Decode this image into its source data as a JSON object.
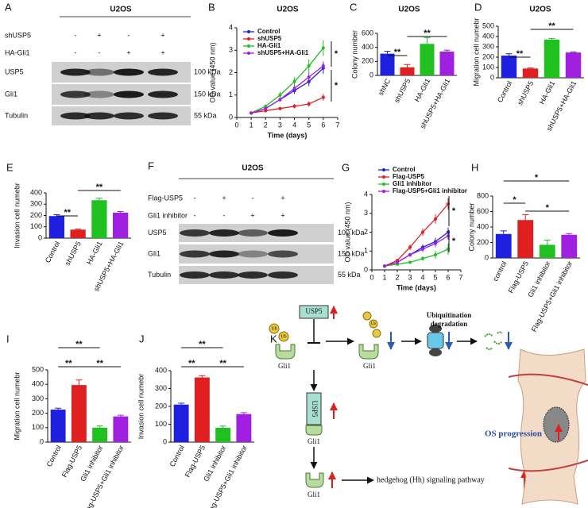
{
  "chart_data": [
    {
      "type": "line",
      "panel": "B",
      "title": "U2OS",
      "xlabel": "Time (days)",
      "ylabel": "OD value (450 nm)",
      "x": [
        1,
        2,
        3,
        4,
        5,
        6
      ],
      "xlim": [
        0,
        7
      ],
      "xticks": [
        0,
        1,
        2,
        3,
        4,
        5,
        6,
        7
      ],
      "ylim": [
        0,
        4
      ],
      "yticks": [
        0,
        1,
        2,
        3,
        4
      ],
      "series": [
        {
          "name": "Control",
          "color": "#1f1fe0",
          "values": [
            0.2,
            0.4,
            0.8,
            1.2,
            1.6,
            2.2
          ],
          "errors": [
            0.03,
            0.06,
            0.1,
            0.15,
            0.2,
            0.25
          ]
        },
        {
          "name": "shUSP5",
          "color": "#e02020",
          "values": [
            0.2,
            0.3,
            0.4,
            0.5,
            0.6,
            0.9
          ],
          "errors": [
            0.03,
            0.05,
            0.08,
            0.1,
            0.12,
            0.15
          ]
        },
        {
          "name": "HA-Gli1",
          "color": "#20c020",
          "values": [
            0.2,
            0.5,
            1.0,
            1.6,
            2.3,
            3.1
          ],
          "errors": [
            0.03,
            0.08,
            0.15,
            0.2,
            0.3,
            0.35
          ]
        },
        {
          "name": "shUSP5+HA-Gli1",
          "color": "#a020e0",
          "values": [
            0.2,
            0.4,
            0.8,
            1.3,
            1.8,
            2.3
          ],
          "errors": [
            0.03,
            0.06,
            0.1,
            0.15,
            0.2,
            0.2
          ]
        }
      ],
      "annotations": [
        "*",
        "*"
      ]
    },
    {
      "type": "bar",
      "panel": "C",
      "title": "U2OS",
      "ylabel": "Colony number",
      "categories": [
        "shNC",
        "shUSP5",
        "HA-Gli1",
        "shUSP5+HA-Gli1"
      ],
      "values": [
        310,
        115,
        450,
        340
      ],
      "errors": [
        35,
        40,
        90,
        20
      ],
      "colors": [
        "#1f1fe0",
        "#e02020",
        "#20c020",
        "#a020e0"
      ],
      "ylim": [
        0,
        600
      ],
      "yticks": [
        0,
        200,
        400,
        600
      ],
      "annotations": [
        "**",
        "**"
      ]
    },
    {
      "type": "bar",
      "panel": "D",
      "title": "U2OS",
      "ylabel": "Migration cell numebr",
      "categories": [
        "Control",
        "shUSP5",
        "HA-Gli1",
        "shUSP5+HA-Gli1"
      ],
      "values": [
        215,
        90,
        370,
        245
      ],
      "errors": [
        18,
        5,
        12,
        5
      ],
      "colors": [
        "#1f1fe0",
        "#e02020",
        "#20c020",
        "#a020e0"
      ],
      "ylim": [
        0,
        500
      ],
      "yticks": [
        0,
        100,
        200,
        300,
        400,
        500
      ],
      "annotations": [
        "**",
        "**"
      ]
    },
    {
      "type": "bar",
      "panel": "E",
      "ylabel": "Invasion cell numebr",
      "categories": [
        "Control",
        "shUSP5",
        "HA-Gli1",
        "shUSP5+HA-Gli1"
      ],
      "values": [
        195,
        75,
        335,
        225
      ],
      "errors": [
        12,
        5,
        18,
        10
      ],
      "colors": [
        "#1f1fe0",
        "#e02020",
        "#20c020",
        "#a020e0"
      ],
      "ylim": [
        0,
        400
      ],
      "yticks": [
        0,
        100,
        200,
        300,
        400
      ],
      "annotations": [
        "**",
        "**"
      ]
    },
    {
      "type": "line",
      "panel": "G",
      "xlabel": "Time (days)",
      "ylabel": "OD value (450 nm)",
      "x": [
        1,
        2,
        3,
        4,
        5,
        6
      ],
      "xlim": [
        0,
        7
      ],
      "xticks": [
        0,
        1,
        2,
        3,
        4,
        5,
        6,
        7
      ],
      "ylim": [
        0,
        4
      ],
      "yticks": [
        0,
        1,
        2,
        3,
        4
      ],
      "series": [
        {
          "name": "Control",
          "color": "#1f1fe0",
          "values": [
            0.2,
            0.4,
            0.8,
            1.2,
            1.5,
            2.0
          ],
          "errors": [
            0.03,
            0.06,
            0.1,
            0.15,
            0.2,
            0.25
          ]
        },
        {
          "name": "Flag-USP5",
          "color": "#e02020",
          "values": [
            0.2,
            0.5,
            1.2,
            2.0,
            2.7,
            3.5
          ],
          "errors": [
            0.03,
            0.08,
            0.15,
            0.2,
            0.25,
            0.3
          ]
        },
        {
          "name": "Gli1 inhibitor",
          "color": "#20c020",
          "values": [
            0.2,
            0.3,
            0.4,
            0.6,
            0.8,
            1.1
          ],
          "errors": [
            0.03,
            0.05,
            0.08,
            0.12,
            0.2,
            0.3
          ]
        },
        {
          "name": "Flag-USP5+Gli1 inhibitor",
          "color": "#a020e0",
          "values": [
            0.2,
            0.4,
            0.8,
            1.1,
            1.4,
            1.8
          ],
          "errors": [
            0.03,
            0.06,
            0.1,
            0.15,
            0.2,
            0.2
          ]
        }
      ],
      "annotations": [
        "*",
        "*"
      ]
    },
    {
      "type": "bar",
      "panel": "H",
      "ylabel": "Colony number",
      "categories": [
        "control",
        "Flag-USP5",
        "Gli1 inhibitor",
        "Flag-USP5+Gli1 inhibitor"
      ],
      "values": [
        310,
        490,
        170,
        300
      ],
      "errors": [
        40,
        70,
        60,
        15
      ],
      "colors": [
        "#1f1fe0",
        "#e02020",
        "#20c020",
        "#a020e0"
      ],
      "ylim": [
        0,
        800
      ],
      "yticks": [
        0,
        200,
        400,
        600,
        800
      ],
      "annotations": [
        "*",
        "*",
        "*"
      ]
    },
    {
      "type": "bar",
      "panel": "I",
      "ylabel": "Migration cell numebr",
      "categories": [
        "Control",
        "Flag-USP5",
        "Gli1 inhibitor",
        "Flag-USP5+Gli1 inhibitor"
      ],
      "values": [
        225,
        395,
        100,
        178
      ],
      "errors": [
        10,
        35,
        12,
        8
      ],
      "colors": [
        "#1f1fe0",
        "#e02020",
        "#20c020",
        "#a020e0"
      ],
      "ylim": [
        0,
        500
      ],
      "yticks": [
        0,
        100,
        200,
        300,
        400,
        500
      ],
      "annotations": [
        "**",
        "**",
        "**"
      ]
    },
    {
      "type": "bar",
      "panel": "J",
      "ylabel": "Invasion cell numebr",
      "categories": [
        "Control",
        "Flag-USP5",
        "Gli1 inhibitor",
        "Flag-USP5+Gli1 inhibitor"
      ],
      "values": [
        210,
        362,
        80,
        157
      ],
      "errors": [
        8,
        10,
        10,
        8
      ],
      "colors": [
        "#1f1fe0",
        "#e02020",
        "#20c020",
        "#a020e0"
      ],
      "ylim": [
        0,
        400
      ],
      "yticks": [
        0,
        100,
        200,
        300,
        400
      ],
      "annotations": [
        "**",
        "**",
        "**"
      ]
    }
  ],
  "blots": [
    {
      "panel": "A",
      "title": "U2OS",
      "conditions": [
        {
          "name": "shUSP5",
          "signs": [
            "-",
            "+",
            "-",
            "+"
          ]
        },
        {
          "name": "HA-Gli1",
          "signs": [
            "-",
            "-",
            "+",
            "+"
          ]
        }
      ],
      "bands": [
        {
          "name": "USP5",
          "size": "100 kDa"
        },
        {
          "name": "Gli1",
          "size": "150 kDa"
        },
        {
          "name": "Tubulin",
          "size": "55 kDa"
        }
      ]
    },
    {
      "panel": "F",
      "title": "U2OS",
      "conditions": [
        {
          "name": "Flag-USP5",
          "signs": [
            "-",
            "+",
            "-",
            "+"
          ]
        },
        {
          "name": "Gli1 inhibitor",
          "signs": [
            "-",
            "-",
            "+",
            "+"
          ]
        }
      ],
      "bands": [
        {
          "name": "USP5",
          "size": "100 kDa"
        },
        {
          "name": "Gli1",
          "size": "150 kDa"
        },
        {
          "name": "Tubulin",
          "size": "55 kDa"
        }
      ]
    }
  ],
  "diagram": {
    "panel": "K",
    "usp5": "USP5",
    "gli1": "Gli1",
    "ub": "Ub",
    "degradation": [
      "Ubiquitination",
      "degradation"
    ],
    "pathway": "hedgehog (Hh) signaling pathway",
    "progression": "OS progression"
  }
}
